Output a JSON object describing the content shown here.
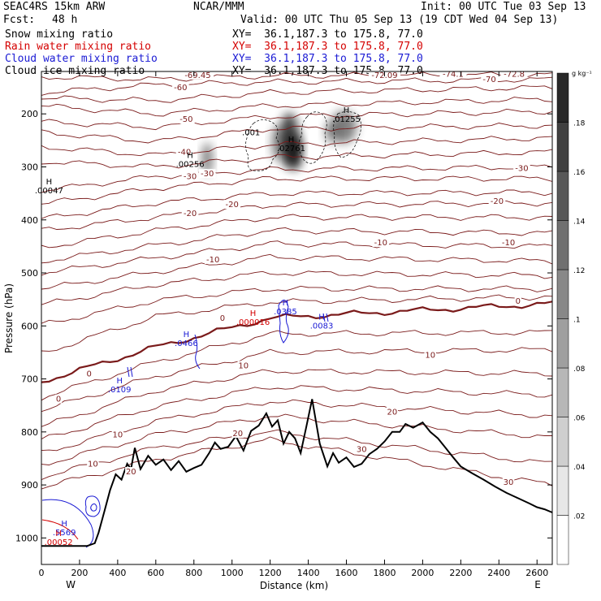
{
  "header": {
    "model": "SEAC4RS 15km ARW",
    "center": "NCAR/MMM",
    "init": "Init: 00 UTC Tue 03 Sep 13",
    "fcst_label": "Fcst:",
    "fcst_value": "48 h",
    "valid": "Valid: 00 UTC Thu 05 Sep 13 (19 CDT Wed 04 Sep 13)"
  },
  "legend": [
    {
      "field": "Snow mixing ratio",
      "xy": "XY=  36.1,187.3 to 175.8, 77.0",
      "color": "#000000"
    },
    {
      "field": "Rain water mixing ratio",
      "xy": "XY=  36.1,187.3 to 175.8, 77.0",
      "color": "#d40000"
    },
    {
      "field": "Cloud water mixing ratio",
      "xy": "XY=  36.1,187.3 to 175.8, 77.0",
      "color": "#1a1ad4"
    },
    {
      "field": "Cloud ice mixing ratio",
      "xy": "XY=  36.1,187.3 to 175.8, 77.0",
      "color": "#000000"
    }
  ],
  "chart_data": {
    "type": "cross-section",
    "xlabel": "Distance (km)",
    "ylabel": "Pressure (hPa)",
    "xlim": [
      0,
      2680
    ],
    "ylim": [
      1050,
      120
    ],
    "x_ticks": [
      0,
      200,
      400,
      600,
      800,
      1000,
      1200,
      1400,
      1600,
      1800,
      2000,
      2200,
      2400,
      2600
    ],
    "y_ticks": [
      200,
      300,
      400,
      500,
      600,
      700,
      800,
      900,
      1000
    ],
    "end_labels": {
      "left": "W",
      "right": "E"
    },
    "colorbar": {
      "unit": "g kg⁻¹",
      "ticks": [
        ".02",
        ".04",
        ".06",
        ".08",
        ".1",
        ".12",
        ".14",
        ".16",
        ".18"
      ],
      "values": [
        0.02,
        0.04,
        0.06,
        0.08,
        0.1,
        0.12,
        0.14,
        0.16,
        0.18
      ],
      "max": 0.2
    },
    "temperature_contour_labels": [
      {
        "text": "-69.45",
        "x": 820,
        "p": 132
      },
      {
        "text": "-72.09",
        "x": 1800,
        "p": 132
      },
      {
        "text": "-74.1",
        "x": 2160,
        "p": 130
      },
      {
        "text": "-72.8",
        "x": 2480,
        "p": 130
      },
      {
        "text": "-70",
        "x": 2350,
        "p": 140
      },
      {
        "text": "-60",
        "x": 730,
        "p": 155
      },
      {
        "text": "-50",
        "x": 760,
        "p": 215
      },
      {
        "text": "-40",
        "x": 750,
        "p": 277
      },
      {
        "text": "-30",
        "x": 780,
        "p": 323
      },
      {
        "text": "-30",
        "x": 870,
        "p": 318
      },
      {
        "text": "-30",
        "x": 2520,
        "p": 308
      },
      {
        "text": "-20",
        "x": 1000,
        "p": 376
      },
      {
        "text": "-20",
        "x": 780,
        "p": 393
      },
      {
        "text": "-20",
        "x": 2390,
        "p": 370
      },
      {
        "text": "-10",
        "x": 1780,
        "p": 448
      },
      {
        "text": "-10",
        "x": 2450,
        "p": 448
      },
      {
        "text": "-10",
        "x": 900,
        "p": 480
      },
      {
        "text": "0",
        "x": 950,
        "p": 590
      },
      {
        "text": "0",
        "x": 2500,
        "p": 558
      },
      {
        "text": "0",
        "x": 250,
        "p": 695
      },
      {
        "text": "0",
        "x": 90,
        "p": 743
      },
      {
        "text": "10",
        "x": 1060,
        "p": 680
      },
      {
        "text": "10",
        "x": 2040,
        "p": 660
      },
      {
        "text": "10",
        "x": 400,
        "p": 810
      },
      {
        "text": "10",
        "x": 270,
        "p": 865
      },
      {
        "text": "20",
        "x": 1840,
        "p": 767
      },
      {
        "text": "20",
        "x": 1030,
        "p": 808
      },
      {
        "text": "20",
        "x": 470,
        "p": 880
      },
      {
        "text": "30",
        "x": 1680,
        "p": 838
      },
      {
        "text": "30",
        "x": 2450,
        "p": 900
      }
    ],
    "max_labels": [
      {
        "mark": "H",
        "value": ".00047",
        "x": 40,
        "p": 350,
        "color": "#000000"
      },
      {
        "mark": "H",
        "value": ".00256",
        "x": 780,
        "p": 300,
        "color": "#000000"
      },
      {
        "mark": "H",
        "value": ".02761",
        "x": 1310,
        "p": 270,
        "color": "#000000"
      },
      {
        "mark": "H",
        "value": ".01255",
        "x": 1600,
        "p": 215,
        "color": "#000000"
      },
      {
        "mark": "",
        "value": ".001",
        "x": 1100,
        "p": 240,
        "color": "#000000"
      },
      {
        "mark": "H",
        "value": ".0385",
        "x": 1280,
        "p": 578,
        "color": "#1a1ad4"
      },
      {
        "mark": "H",
        "value": ".000016",
        "x": 1110,
        "p": 598,
        "color": "#d40000"
      },
      {
        "mark": "H",
        "value": ".0083",
        "x": 1470,
        "p": 605,
        "color": "#1a1ad4"
      },
      {
        "mark": "H",
        "value": ".0466",
        "x": 760,
        "p": 638,
        "color": "#1a1ad4"
      },
      {
        "mark": "H",
        "value": ".0109",
        "x": 410,
        "p": 725,
        "color": "#1a1ad4"
      },
      {
        "mark": "H",
        "value": ".5569",
        "x": 120,
        "p": 995,
        "color": "#1a1ad4"
      },
      {
        "mark": "H",
        "value": ".00052",
        "x": 90,
        "p": 1013,
        "color": "#d40000"
      }
    ],
    "terrain": {
      "x": [
        0,
        80,
        160,
        240,
        280,
        300,
        330,
        360,
        390,
        420,
        450,
        470,
        490,
        520,
        560,
        600,
        640,
        680,
        720,
        760,
        800,
        840,
        880,
        910,
        940,
        980,
        1020,
        1060,
        1100,
        1140,
        1180,
        1210,
        1240,
        1270,
        1300,
        1330,
        1360,
        1390,
        1420,
        1460,
        1500,
        1530,
        1560,
        1600,
        1640,
        1680,
        1720,
        1760,
        1800,
        1840,
        1880,
        1910,
        1950,
        2000,
        2040,
        2080,
        2120,
        2160,
        2200,
        2260,
        2320,
        2380,
        2440,
        2500,
        2560,
        2600,
        2640,
        2680
      ],
      "p": [
        1015,
        1015,
        1015,
        1015,
        1010,
        990,
        950,
        910,
        880,
        890,
        860,
        870,
        830,
        870,
        845,
        862,
        852,
        872,
        855,
        875,
        868,
        862,
        840,
        820,
        832,
        828,
        808,
        835,
        798,
        788,
        765,
        790,
        778,
        822,
        800,
        812,
        840,
        790,
        738,
        822,
        865,
        840,
        858,
        848,
        866,
        860,
        842,
        832,
        818,
        800,
        800,
        785,
        792,
        782,
        800,
        812,
        830,
        848,
        865,
        878,
        890,
        903,
        915,
        925,
        935,
        942,
        946,
        952
      ]
    }
  }
}
